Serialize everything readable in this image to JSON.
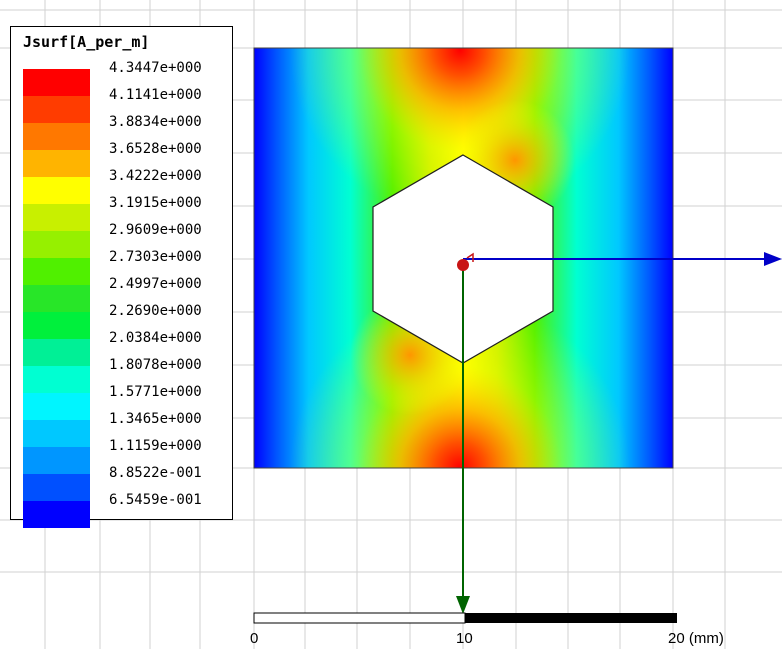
{
  "legend": {
    "title": "Jsurf[A_per_m]",
    "levels": [
      {
        "value": "4.3447e+000",
        "color": "#ff0000"
      },
      {
        "value": "4.1141e+000",
        "color": "#ff3c00"
      },
      {
        "value": "3.8834e+000",
        "color": "#ff7800"
      },
      {
        "value": "3.6528e+000",
        "color": "#ffb400"
      },
      {
        "value": "3.4222e+000",
        "color": "#ffff00"
      },
      {
        "value": "3.1915e+000",
        "color": "#c8f000"
      },
      {
        "value": "2.9609e+000",
        "color": "#96f000"
      },
      {
        "value": "2.7303e+000",
        "color": "#50f000"
      },
      {
        "value": "2.4997e+000",
        "color": "#28e628"
      },
      {
        "value": "2.2690e+000",
        "color": "#00f03c"
      },
      {
        "value": "2.0384e+000",
        "color": "#00f096"
      },
      {
        "value": "1.8078e+000",
        "color": "#00ffd2"
      },
      {
        "value": "1.5771e+000",
        "color": "#00f5ff"
      },
      {
        "value": "1.3465e+000",
        "color": "#00c8ff"
      },
      {
        "value": "1.1159e+000",
        "color": "#0096ff"
      },
      {
        "value": "8.8522e-001",
        "color": "#0050ff"
      },
      {
        "value": "6.5459e-001",
        "color": "#0000ff"
      }
    ]
  },
  "scale": {
    "labels": [
      "0",
      "10",
      "20 (mm)"
    ]
  },
  "colors": {
    "x_axis": "#0000c8",
    "y_axis": "#006400",
    "origin": "#c81414",
    "grid": "#d2d2d2"
  }
}
